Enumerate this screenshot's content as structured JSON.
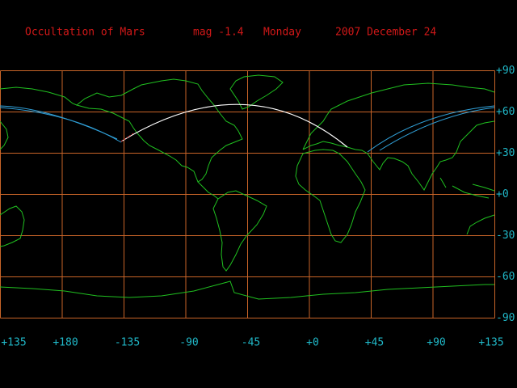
{
  "header": {
    "event": "Occultation of Mars",
    "magnitude": "mag -1.4",
    "weekday": "Monday",
    "date": "2007 December 24"
  },
  "map": {
    "latitude_labels": [
      "+90",
      "+60",
      "+30",
      "+0",
      "-30",
      "-60",
      "-90"
    ],
    "longitude_labels": [
      "+135",
      "+180",
      "-135",
      "-90",
      "-45",
      "+0",
      "+45",
      "+90",
      "+135"
    ]
  }
}
